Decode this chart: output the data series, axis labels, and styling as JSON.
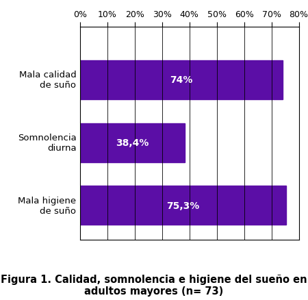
{
  "categories": [
    "Mala calidad\nde suño",
    "Somnolencia\ndiurna",
    "Mala higiene\nde suño"
  ],
  "values": [
    74.0,
    38.4,
    75.3
  ],
  "labels": [
    "74%",
    "38,4%",
    "75,3%"
  ],
  "bar_color": "#5B0EA6",
  "xlim": [
    0,
    80
  ],
  "xticks": [
    0,
    10,
    20,
    30,
    40,
    50,
    60,
    70,
    80
  ],
  "xtick_labels": [
    "0%",
    "10%",
    "20%",
    "30%",
    "40%",
    "50%",
    "60%",
    "70%",
    "80%"
  ],
  "figure_caption_line1": "Figura 1. Calidad, somnolencia e higiene del sueño en",
  "figure_caption_line2": "adultos mayores (n= 73)",
  "bg_color": "#ffffff",
  "bar_label_fontsize": 10,
  "tick_label_fontsize": 9,
  "ytick_label_fontsize": 9.5,
  "caption_fontsize": 10.5
}
